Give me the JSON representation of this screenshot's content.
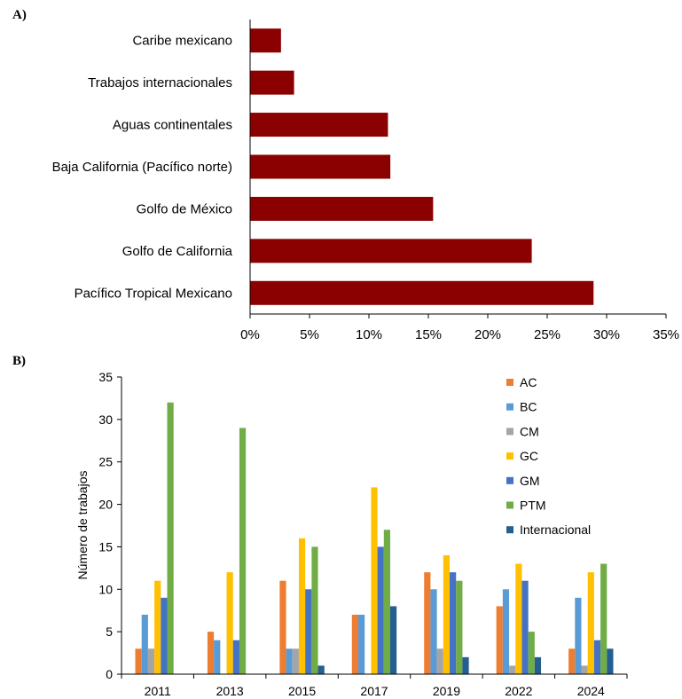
{
  "panelA": {
    "label": "A)"
  },
  "panelB": {
    "label": "B)"
  },
  "chart_data": [
    {
      "type": "bar",
      "orientation": "horizontal",
      "categories": [
        "Caribe mexicano",
        "Trabajos internacionales",
        "Aguas continentales",
        "Baja California (Pacífico norte)",
        "Golfo de México",
        "Golfo de California",
        "Pacífico    Tropical    Mexicano"
      ],
      "values": [
        2.6,
        3.7,
        11.6,
        11.8,
        15.4,
        23.7,
        28.9
      ],
      "xlim": [
        0,
        35
      ],
      "xticks": [
        "0%",
        "5%",
        "10%",
        "15%",
        "20%",
        "25%",
        "30%",
        "35%"
      ],
      "color": "#8B0000",
      "grid": false
    },
    {
      "type": "bar",
      "categories": [
        "2011",
        "2013",
        "2015",
        "2017",
        "2019",
        "2022",
        "2024"
      ],
      "ylabel": "Número de trabajos",
      "ylim": [
        0,
        35
      ],
      "yticks": [
        "0",
        "5",
        "10",
        "15",
        "20",
        "25",
        "30",
        "35"
      ],
      "legend_position": "top-right",
      "grid": false,
      "series": [
        {
          "name": "AC",
          "color": "#ED7D31",
          "values": [
            3,
            5,
            11,
            7,
            12,
            8,
            3
          ]
        },
        {
          "name": "BC",
          "color": "#5B9BD5",
          "values": [
            7,
            4,
            3,
            7,
            10,
            10,
            9
          ]
        },
        {
          "name": "CM",
          "color": "#A5A5A5",
          "values": [
            3,
            0,
            3,
            0,
            3,
            1,
            1
          ]
        },
        {
          "name": "GC",
          "color": "#FFC000",
          "values": [
            11,
            12,
            16,
            22,
            14,
            13,
            12
          ]
        },
        {
          "name": "GM",
          "color": "#4472C4",
          "values": [
            9,
            4,
            10,
            15,
            12,
            11,
            4
          ]
        },
        {
          "name": "PTM",
          "color": "#70AD47",
          "values": [
            32,
            29,
            15,
            17,
            11,
            5,
            13
          ]
        },
        {
          "name": "Internacional",
          "color": "#255E91",
          "values": [
            0,
            0,
            1,
            8,
            2,
            2,
            3
          ]
        }
      ]
    }
  ]
}
